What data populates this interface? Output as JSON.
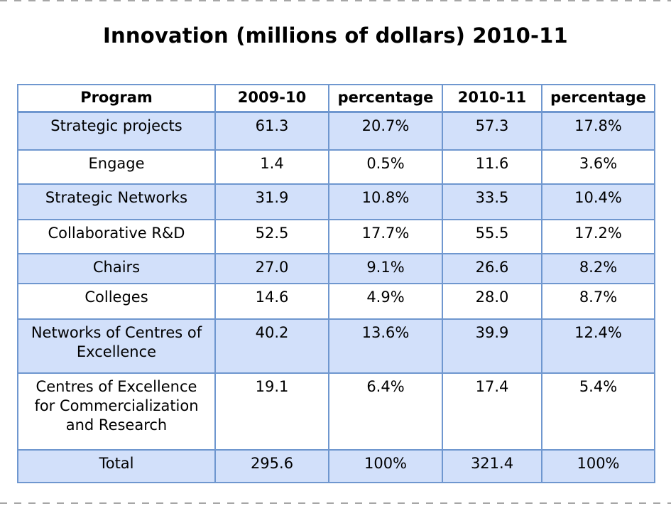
{
  "title": "Innovation (millions of dollars) 2010-11",
  "table": {
    "headers": [
      "Program",
      "2009-10",
      "percentage",
      "2010-11",
      "percentage"
    ],
    "rows": [
      {
        "program": "Strategic projects",
        "v2009": "61.3",
        "p2009": "20.7%",
        "v2010": "57.3",
        "p2010": "17.8%"
      },
      {
        "program": "Engage",
        "v2009": "1.4",
        "p2009": "0.5%",
        "v2010": "11.6",
        "p2010": "3.6%"
      },
      {
        "program": "Strategic Networks",
        "v2009": "31.9",
        "p2009": "10.8%",
        "v2010": "33.5",
        "p2010": "10.4%"
      },
      {
        "program": "Collaborative R&D",
        "v2009": "52.5",
        "p2009": "17.7%",
        "v2010": "55.5",
        "p2010": "17.2%"
      },
      {
        "program": "Chairs",
        "v2009": "27.0",
        "p2009": "9.1%",
        "v2010": "26.6",
        "p2010": "8.2%"
      },
      {
        "program": "Colleges",
        "v2009": "14.6",
        "p2009": "4.9%",
        "v2010": "28.0",
        "p2010": "8.7%"
      },
      {
        "program": "Networks of Centres of Excellence",
        "v2009": "40.2",
        "p2009": "13.6%",
        "v2010": "39.9",
        "p2010": "12.4%"
      },
      {
        "program": "Centres of Excellence for Commercialization and Research",
        "v2009": "19.1",
        "p2009": "6.4%",
        "v2010": "17.4",
        "p2010": "5.4%"
      },
      {
        "program": "Total",
        "v2009": "295.6",
        "p2009": "100%",
        "v2010": "321.4",
        "p2010": "100%"
      }
    ]
  },
  "colors": {
    "shaded_row": "#d2e0fa",
    "border": "#6f97cf"
  }
}
